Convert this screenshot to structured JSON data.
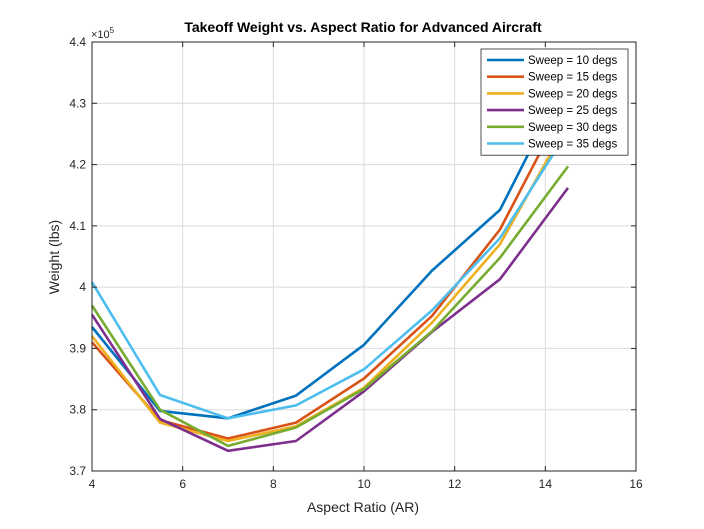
{
  "chart_data": {
    "type": "line",
    "title": "Takeoff Weight vs. Aspect Ratio for Advanced Aircraft",
    "xlabel": "Aspect Ratio (AR)",
    "ylabel": "Weight (lbs)",
    "y_exponent_label": "×10",
    "y_exponent_power": "5",
    "xlim": [
      4,
      16
    ],
    "ylim": [
      3.7,
      4.4
    ],
    "x_ticks": [
      4,
      6,
      8,
      10,
      12,
      14,
      16
    ],
    "y_ticks": [
      3.7,
      3.8,
      3.9,
      4.0,
      4.1,
      4.2,
      4.3,
      4.4
    ],
    "x_tick_labels": [
      "4",
      "6",
      "8",
      "10",
      "12",
      "14",
      "16"
    ],
    "y_tick_labels": [
      "3.7",
      "3.8",
      "3.9",
      "4",
      "4.1",
      "4.2",
      "4.3",
      "4.4"
    ],
    "grid": true,
    "legend_position": "top-right",
    "x": [
      4,
      5.5,
      7,
      8.5,
      10,
      11.5,
      13,
      14.5
    ],
    "series": [
      {
        "name": "Sweep = 10 degs",
        "color": "#0072BD",
        "values": [
          3.935,
          3.798,
          3.786,
          3.823,
          3.906,
          4.027,
          4.126,
          4.345
        ]
      },
      {
        "name": "Sweep = 15 degs",
        "color": "#D95319",
        "values": [
          3.91,
          3.783,
          3.753,
          3.779,
          3.851,
          3.953,
          4.094,
          4.307
        ]
      },
      {
        "name": "Sweep = 20 degs",
        "color": "#EDB120",
        "values": [
          3.92,
          3.779,
          3.749,
          3.773,
          3.836,
          3.942,
          4.07,
          4.268
        ]
      },
      {
        "name": "Sweep = 25 degs",
        "color": "#7E2F8E",
        "values": [
          3.955,
          3.785,
          3.733,
          3.749,
          3.83,
          3.927,
          4.013,
          4.162
        ]
      },
      {
        "name": "Sweep = 30 degs",
        "color": "#77AC30",
        "values": [
          3.97,
          3.8,
          3.741,
          3.771,
          3.834,
          3.928,
          4.048,
          4.197
        ]
      },
      {
        "name": "Sweep = 35 degs",
        "color": "#4DBEEE",
        "values": [
          4.008,
          3.824,
          3.786,
          3.807,
          3.866,
          3.962,
          4.08,
          4.255
        ]
      }
    ]
  }
}
